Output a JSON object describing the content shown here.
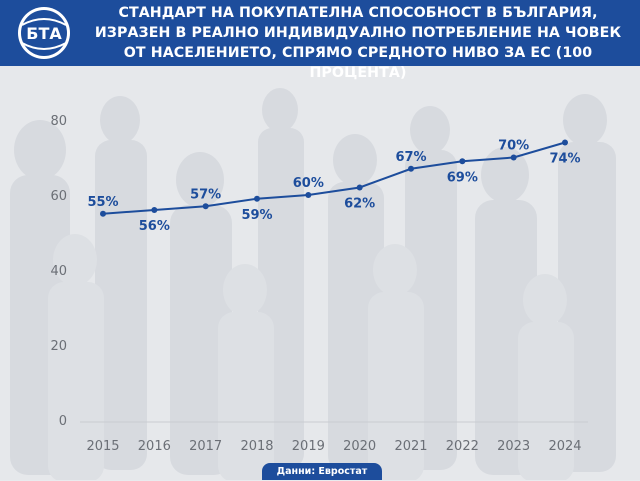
{
  "header": {
    "logo_text": "БТА",
    "title": "СТАНДАРТ НА ПОКУПАТЕЛНА СПОСОБНОСТ В БЪЛГАРИЯ, ИЗРАЗЕН В РЕАЛНО ИНДИВИДУАЛНО ПОТРЕБЛЕНИЕ НА ЧОВЕК ОТ НАСЕЛЕНИЕТО, СПРЯМО СРЕДНОТО НИВО ЗА ЕС (100 ПРОЦЕНТА)"
  },
  "source": "Данни: Евростат",
  "colors": {
    "brand": "#1d4d9c",
    "line": "#1d4d9c",
    "axis_text": "#6b6f76",
    "grid": "#c9ccd1"
  },
  "chart_data": {
    "type": "line",
    "title": "СТАНДАРТ НА ПОКУПАТЕЛНА СПОСОБНОСТ В БЪЛГАРИЯ, ИЗРАЗЕН В РЕАЛНО ИНДИВИДУАЛНО ПОТРЕБЛЕНИЕ НА ЧОВЕК ОТ НАСЕЛЕНИЕТО, СПРЯМО СРЕДНОТО НИВО ЗА ЕС (100 ПРОЦЕНТА)",
    "categories": [
      "2015",
      "2016",
      "2017",
      "2018",
      "2019",
      "2020",
      "2021",
      "2022",
      "2023",
      "2024"
    ],
    "values": [
      55,
      56,
      57,
      59,
      60,
      62,
      67,
      69,
      70,
      74
    ],
    "data_labels": [
      "55%",
      "56%",
      "57%",
      "59%",
      "60%",
      "62%",
      "67%",
      "69%",
      "70%",
      "74%"
    ],
    "ylim": [
      0,
      80
    ],
    "yticks": [
      0,
      20,
      40,
      60,
      80
    ],
    "xlabel": "",
    "ylabel": "",
    "grid": false,
    "legend": "none"
  }
}
